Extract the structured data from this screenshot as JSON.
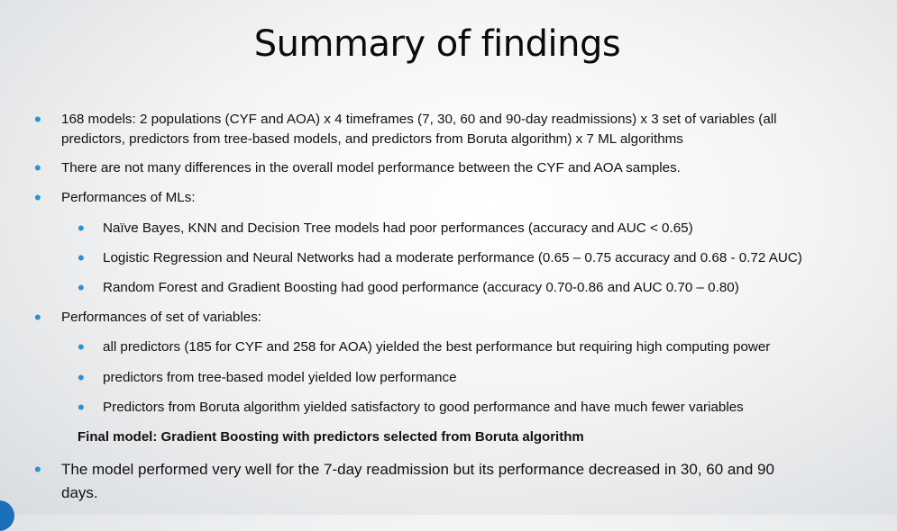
{
  "title": "Summary of findings",
  "bullets": {
    "b1_line1": "168 models: 2 populations (CYF and AOA) x 4 timeframes (7, 30, 60 and 90-day readmissions) x 3 set of variables (all",
    "b1_line2": "predictors, predictors from tree-based models, and predictors from Boruta algorithm) x 7 ML algorithms",
    "b2": "There are not many differences in the overall model performance between the CYF and AOA samples.",
    "b3": "Performances of MLs:",
    "b3_sub1": "Naïve Bayes, KNN and Decision Tree models had poor performances (accuracy and AUC < 0.65)",
    "b3_sub2": "Logistic Regression and Neural Networks had a moderate performance (0.65 – 0.75 accuracy and 0.68 - 0.72 AUC)",
    "b3_sub3": "Random Forest and Gradient Boosting had good performance (accuracy 0.70-0.86 and AUC 0.70 – 0.80)",
    "b4": "Performances of set of variables:",
    "b4_sub1": "all predictors (185 for CYF and 258 for AOA) yielded the best performance but requiring high computing power",
    "b4_sub2": "predictors from tree-based model yielded low performance",
    "b4_sub3": "Predictors from Boruta algorithm yielded satisfactory to good performance and have much fewer variables",
    "final_model": "Final model: Gradient Boosting with predictors selected from Boruta algorithm",
    "b5_line1": "The model performed very well for the 7-day readmission but its performance decreased in 30, 60 and 90",
    "b5_line2": "days."
  },
  "icons": {
    "bullet": "bullet-dot-icon",
    "corner": "corner-accent-shape"
  },
  "colors": {
    "bullet": "#2e8fd6",
    "accent": "#1b6fb8"
  }
}
